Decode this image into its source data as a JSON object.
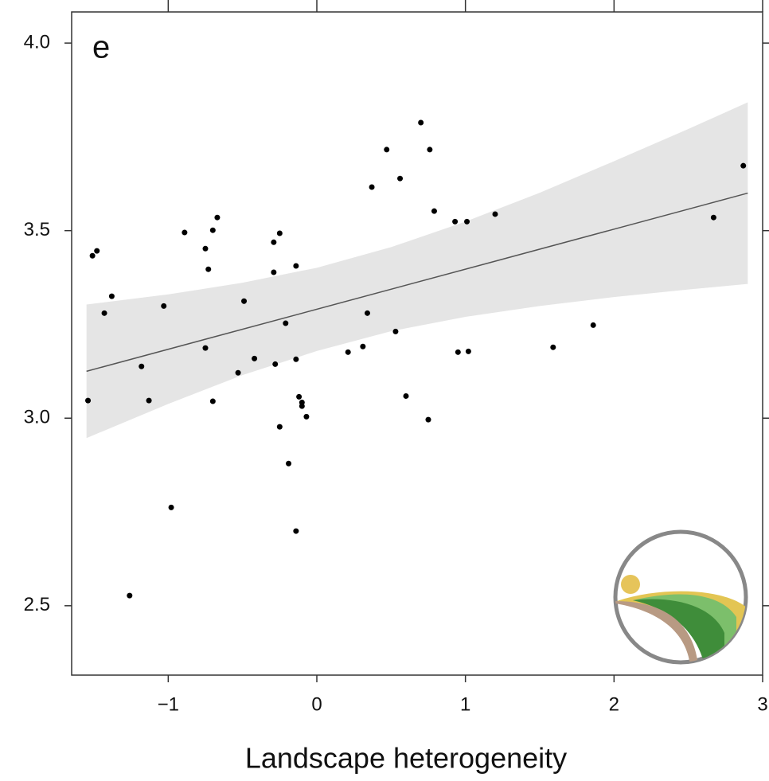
{
  "chart_data": {
    "type": "scatter",
    "panel_label": "e",
    "x_label": "Landscape heterogeneity",
    "xlim": [
      -1.65,
      3.0
    ],
    "ylim": [
      2.315,
      4.083
    ],
    "xticks": [
      {
        "value": -1,
        "label": "−1"
      },
      0,
      1,
      2,
      3
    ],
    "yticks": [
      {
        "value": 2.5,
        "label": "2.5"
      },
      {
        "value": 3.0,
        "label": "3.0"
      },
      {
        "value": 3.5,
        "label": "3.5"
      },
      {
        "value": 4.0,
        "label": "4.0"
      }
    ],
    "color": "#000000",
    "band_color": "#e5e5e5",
    "fit_color": "#555555",
    "x": [
      -1.54,
      -1.51,
      -1.48,
      -1.43,
      -1.38,
      -1.26,
      -1.18,
      -1.13,
      -1.03,
      -0.98,
      -0.89,
      -0.75,
      -0.75,
      -0.73,
      -0.7,
      -0.7,
      -0.67,
      -0.53,
      -0.49,
      -0.42,
      -0.29,
      -0.29,
      -0.28,
      -0.25,
      -0.25,
      -0.21,
      -0.19,
      -0.14,
      -0.14,
      -0.14,
      -0.12,
      -0.1,
      -0.1,
      -0.07,
      0.21,
      0.31,
      0.34,
      0.37,
      0.47,
      0.53,
      0.56,
      0.6,
      0.7,
      0.75,
      0.76,
      0.79,
      0.93,
      0.95,
      1.01,
      1.02,
      1.2,
      1.59,
      1.86,
      2.67,
      2.87
    ],
    "values": [
      3.047,
      3.433,
      3.446,
      3.28,
      3.325,
      2.527,
      3.138,
      3.047,
      3.299,
      2.762,
      3.495,
      3.452,
      3.187,
      3.397,
      3.501,
      3.045,
      3.535,
      3.121,
      3.312,
      3.159,
      3.469,
      3.389,
      3.144,
      3.493,
      2.977,
      3.253,
      2.879,
      3.406,
      3.157,
      2.699,
      3.057,
      3.042,
      3.032,
      3.004,
      3.176,
      3.191,
      3.28,
      3.616,
      3.716,
      3.231,
      3.639,
      3.059,
      3.788,
      2.996,
      3.716,
      3.552,
      3.524,
      3.176,
      3.524,
      3.178,
      3.544,
      3.189,
      3.248,
      3.535,
      3.673
    ],
    "band": {
      "x": [
        -1.55,
        -1,
        -0.5,
        0,
        0.5,
        1,
        1.5,
        2,
        2.5,
        2.9
      ],
      "upper": [
        3.303,
        3.33,
        3.361,
        3.401,
        3.456,
        3.524,
        3.601,
        3.685,
        3.771,
        3.842
      ],
      "lower": [
        2.947,
        3.038,
        3.115,
        3.179,
        3.232,
        3.27,
        3.299,
        3.323,
        3.343,
        3.358
      ]
    },
    "fit": {
      "x": [
        -1.55,
        2.9
      ],
      "y": [
        3.125,
        3.6
      ]
    }
  }
}
